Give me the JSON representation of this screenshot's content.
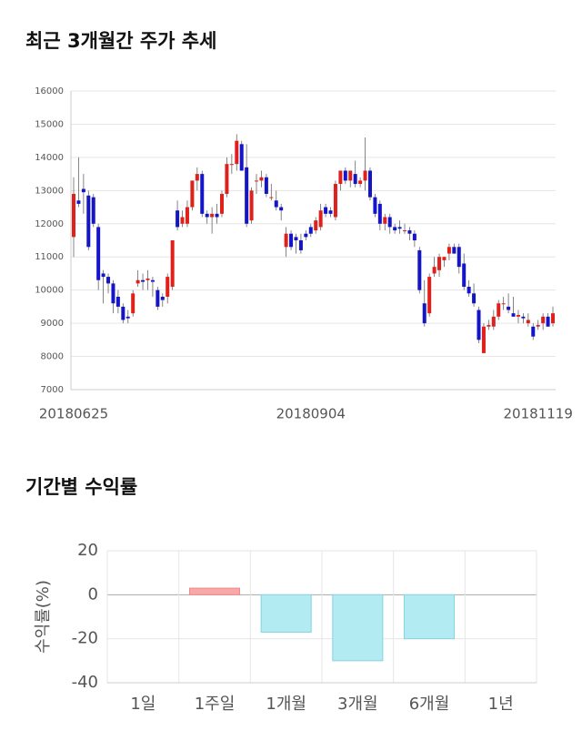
{
  "chart_data": [
    {
      "type": "candlestick",
      "title": "최근 3개월간 주가 추세",
      "categories": [
        "20180625",
        null,
        null,
        null,
        null,
        null,
        null,
        null,
        null,
        null,
        null,
        null,
        null,
        null,
        null,
        null,
        null,
        null,
        null,
        null,
        null,
        null,
        null,
        null,
        null,
        null,
        null,
        null,
        null,
        null,
        null,
        null,
        null,
        null,
        null,
        null,
        null,
        null,
        null,
        null,
        null,
        null,
        null,
        null,
        null,
        null,
        null,
        null,
        "20180904",
        null,
        null,
        null,
        null,
        null,
        null,
        null,
        null,
        null,
        null,
        null,
        null,
        null,
        null,
        null,
        null,
        null,
        null,
        null,
        null,
        null,
        null,
        null,
        null,
        null,
        null,
        null,
        null,
        null,
        null,
        null,
        null,
        null,
        null,
        null,
        null,
        null,
        null,
        null,
        null,
        null,
        null,
        null,
        null,
        null,
        "20181119",
        null,
        null,
        null
      ],
      "open": [
        11600,
        12700,
        13050,
        12850,
        12800,
        11900,
        10500,
        10400,
        10200,
        9800,
        9500,
        9200,
        9300,
        10200,
        10300,
        10300,
        10300,
        10000,
        9800,
        9800,
        10100,
        12400,
        12000,
        12000,
        12500,
        13300,
        13500,
        12300,
        12200,
        12300,
        12300,
        12900,
        13800,
        13800,
        14400,
        13700,
        12100,
        13300,
        13300,
        13400,
        12800,
        12700,
        12500,
        11300,
        11700,
        11600,
        11500,
        11700,
        11900,
        11800,
        11900,
        12500,
        12400,
        12200,
        13200,
        13600,
        13300,
        13500,
        13200,
        13300,
        13600,
        12800,
        12600,
        12000,
        12200,
        11900,
        11900,
        11800,
        11800,
        11700,
        11200,
        9600,
        9300,
        10500,
        10600,
        10900,
        11100,
        11300,
        11300,
        10800,
        10100,
        9900,
        9400,
        8100,
        8900,
        8900,
        9200,
        9600,
        9500,
        9300,
        9200,
        9200,
        9000,
        8900,
        8900,
        9000,
        9200,
        9000
      ],
      "high": [
        13400,
        14000,
        13500,
        13000,
        12900,
        12000,
        10600,
        10500,
        10300,
        10000,
        9600,
        9400,
        10000,
        10600,
        10500,
        10600,
        10400,
        10100,
        9900,
        10500,
        11500,
        12700,
        12400,
        12700,
        13300,
        13700,
        13600,
        12400,
        12500,
        12600,
        13000,
        14000,
        14100,
        14700,
        14500,
        14400,
        13100,
        13500,
        13600,
        13500,
        13200,
        13000,
        12600,
        11900,
        11800,
        11700,
        11700,
        11800,
        12000,
        12200,
        12600,
        12600,
        12500,
        13300,
        13600,
        13700,
        13600,
        13900,
        13400,
        14600,
        13700,
        12900,
        12700,
        12300,
        12300,
        12000,
        12100,
        12000,
        11900,
        11800,
        11300,
        10300,
        10500,
        11000,
        11100,
        11000,
        11400,
        11400,
        11400,
        11100,
        10300,
        10200,
        9500,
        9000,
        9100,
        9400,
        9700,
        9800,
        9900,
        9800,
        9400,
        9300,
        9300,
        9000,
        9100,
        9300,
        9300,
        9500
      ],
      "low": [
        11000,
        12500,
        12300,
        11200,
        11900,
        10000,
        9600,
        9900,
        9300,
        9300,
        9000,
        9000,
        9200,
        10100,
        10000,
        10000,
        9800,
        9400,
        9500,
        9600,
        10000,
        11800,
        11900,
        11900,
        12400,
        13000,
        12200,
        12000,
        11700,
        12000,
        12200,
        12800,
        13500,
        13600,
        13600,
        11900,
        12000,
        12900,
        13100,
        12800,
        12700,
        12400,
        12100,
        11000,
        11200,
        11100,
        11100,
        11500,
        11600,
        11700,
        11800,
        12200,
        12200,
        12100,
        13000,
        13200,
        13100,
        13100,
        13100,
        13000,
        12700,
        12200,
        11800,
        11800,
        11700,
        11700,
        11700,
        11700,
        11500,
        11300,
        9900,
        8900,
        9200,
        10400,
        10400,
        10700,
        10900,
        11100,
        10500,
        10000,
        9800,
        9500,
        8400,
        8100,
        8800,
        8800,
        9100,
        9400,
        9300,
        9200,
        9000,
        9000,
        8900,
        8500,
        8800,
        8800,
        8900,
        8900
      ],
      "close": [
        12900,
        12600,
        12950,
        11300,
        12000,
        10300,
        10400,
        10200,
        9600,
        9500,
        9100,
        9150,
        9900,
        10300,
        10250,
        10350,
        10250,
        9500,
        9700,
        10400,
        11500,
        11900,
        12200,
        12500,
        13300,
        13500,
        12300,
        12200,
        12300,
        12200,
        12900,
        13800,
        13800,
        14500,
        13600,
        12000,
        13000,
        13300,
        13400,
        12900,
        12800,
        12500,
        12400,
        11700,
        11300,
        11500,
        11200,
        11600,
        11700,
        12100,
        12400,
        12300,
        12300,
        13200,
        13600,
        13300,
        13600,
        13200,
        13300,
        13600,
        12800,
        12300,
        12000,
        12200,
        11900,
        11800,
        11850,
        11800,
        11700,
        11500,
        10000,
        9000,
        10400,
        10700,
        11000,
        11000,
        11300,
        11100,
        10700,
        10100,
        9900,
        9600,
        8500,
        8900,
        8950,
        9200,
        9600,
        9600,
        9400,
        9200,
        9250,
        9150,
        9100,
        8600,
        8950,
        9200,
        8900,
        9300
      ],
      "up_color": "#e0201b",
      "down_color": "#1414c8",
      "ylim": [
        7000,
        16000
      ],
      "yticks": [
        7000,
        8000,
        9000,
        10000,
        11000,
        12000,
        13000,
        14000,
        15000,
        16000
      ],
      "grid": true
    },
    {
      "type": "bar",
      "title": "기간별 수익률",
      "y_label": "수익률(%)",
      "categories": [
        "1일",
        "1주일",
        "1개월",
        "3개월",
        "6개월",
        "1년"
      ],
      "values": [
        null,
        3,
        -17,
        -30,
        -20,
        null
      ],
      "positive_color": "#f7a8a8",
      "negative_color": "#b3ebf2",
      "ylim": [
        -40,
        20
      ],
      "yticks": [
        -40,
        -20,
        0,
        20
      ],
      "grid": true
    }
  ]
}
